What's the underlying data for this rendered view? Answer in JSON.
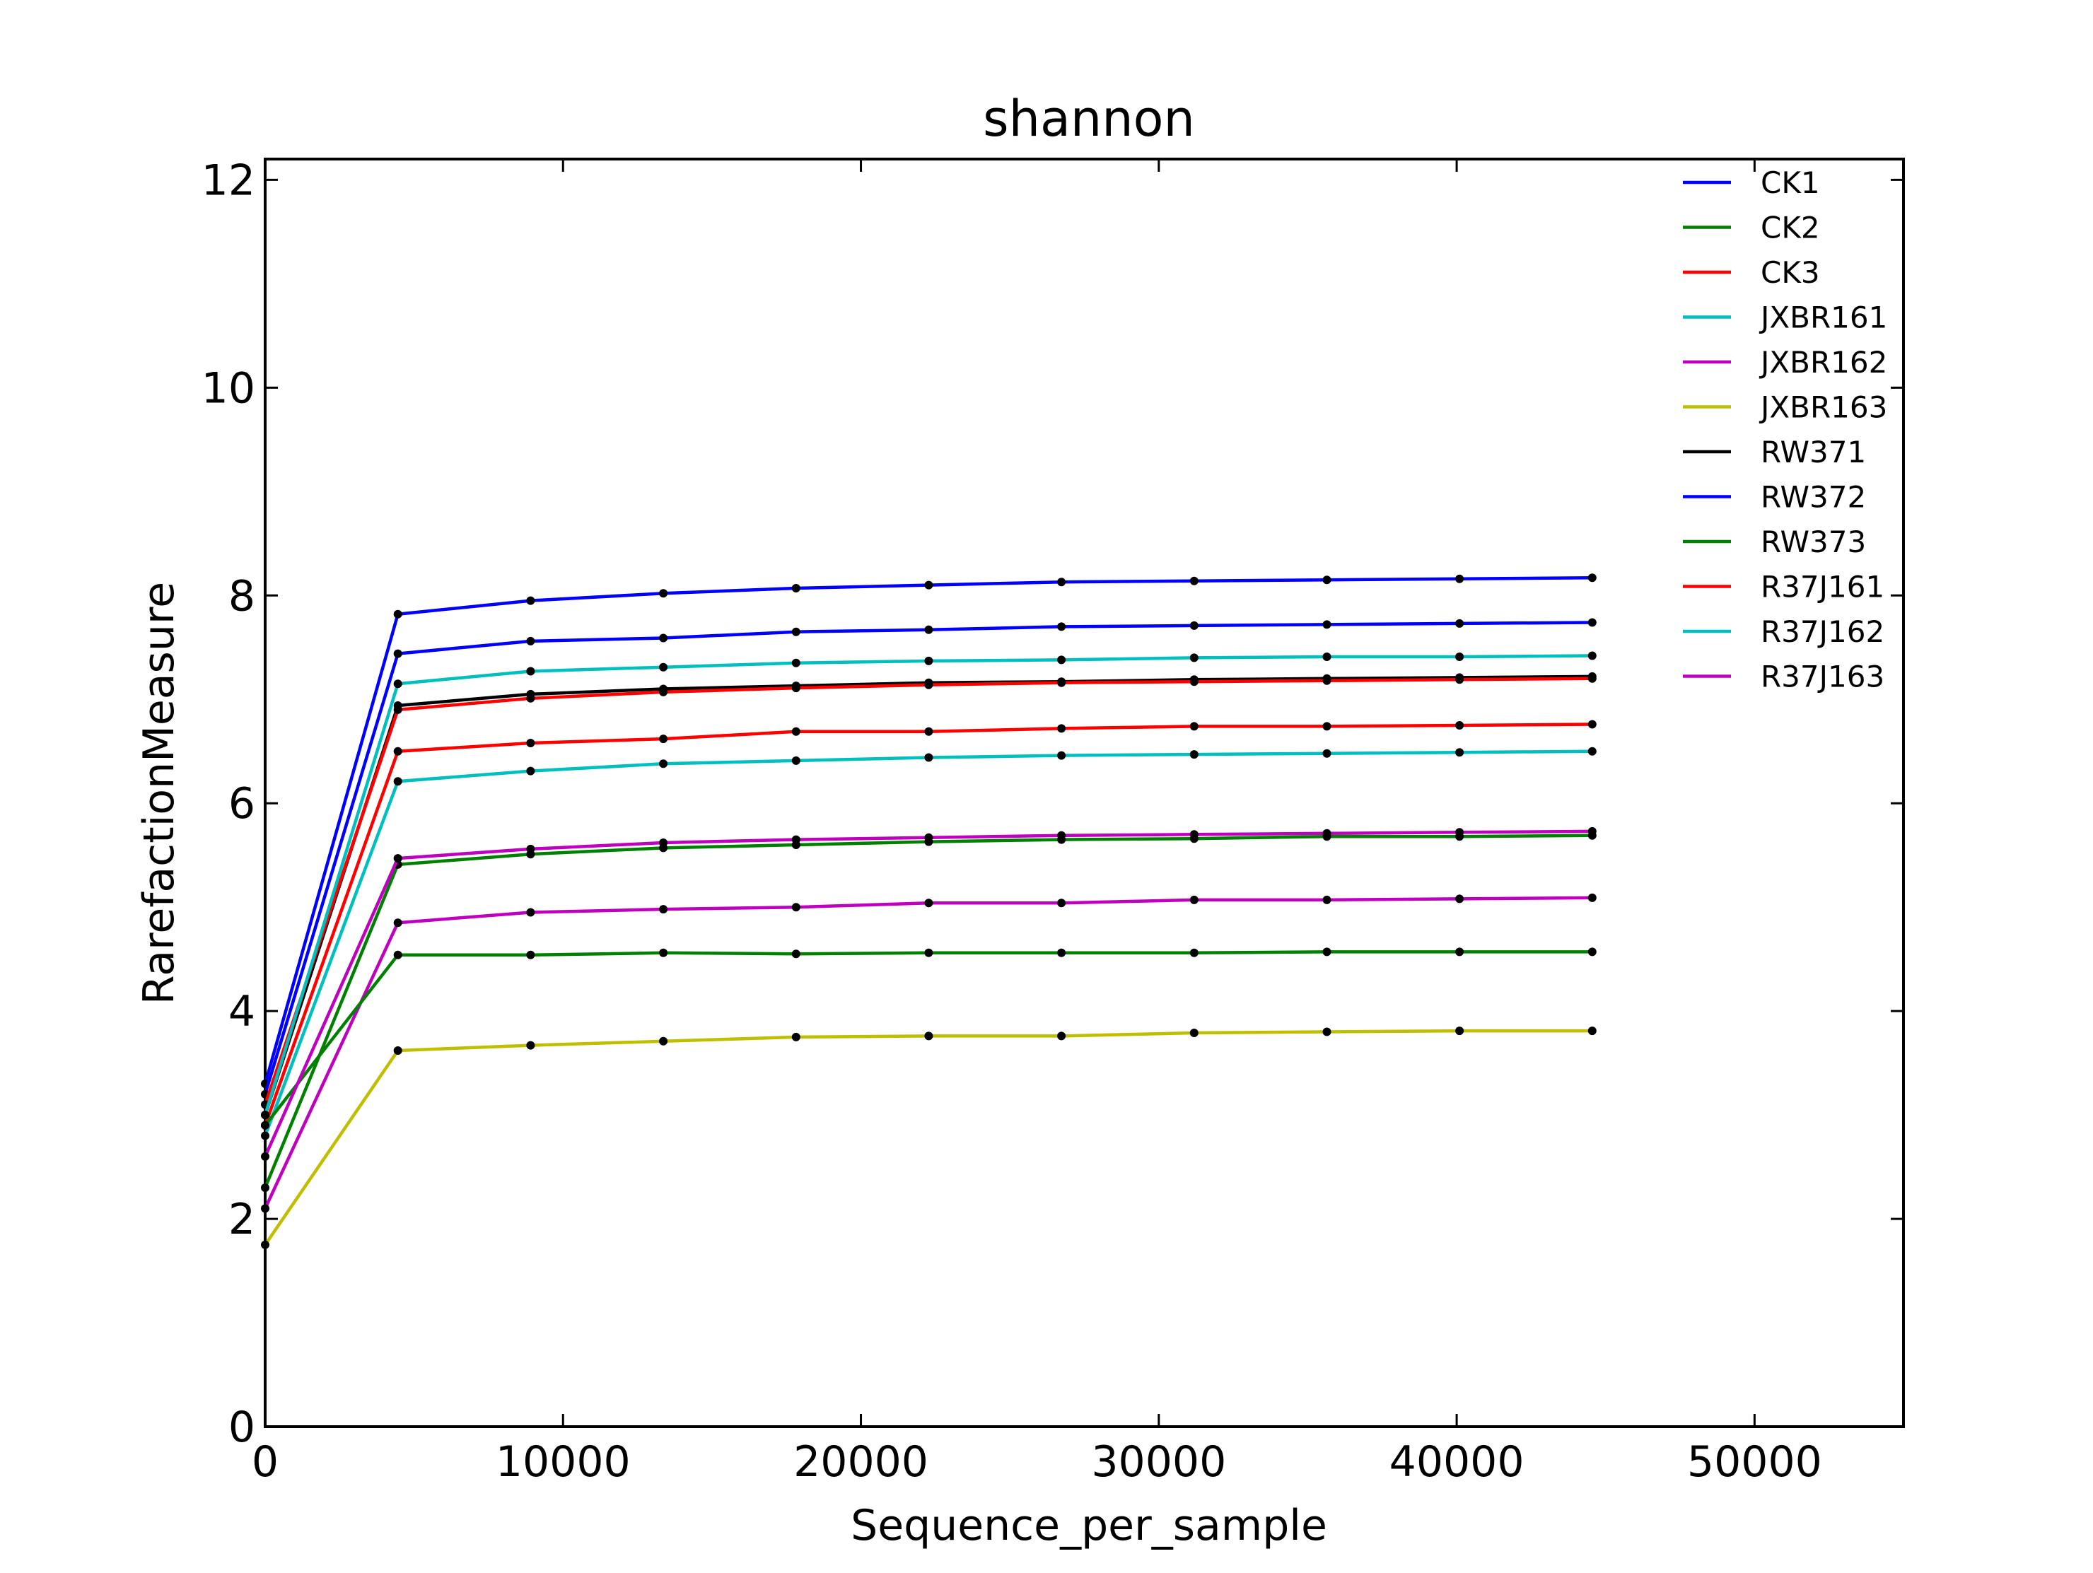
{
  "chart_data": {
    "type": "line",
    "title": "shannon",
    "xlabel": "Sequence_per_sample",
    "ylabel": "RarefactionMeasure",
    "xlim": [
      0,
      55000
    ],
    "ylim": [
      0,
      12.2
    ],
    "xticks": [
      0,
      10000,
      20000,
      30000,
      40000,
      50000
    ],
    "xtick_labels": [
      "0",
      "10000",
      "20000",
      "30000",
      "40000",
      "50000"
    ],
    "yticks": [
      0,
      2,
      4,
      6,
      8,
      10,
      12
    ],
    "ytick_labels": [
      "0",
      "2",
      "4",
      "6",
      "8",
      "10",
      "12"
    ],
    "grid": false,
    "legend": "top-right",
    "markers": true,
    "x": [
      1,
      4456,
      8911,
      13366,
      17821,
      22276,
      26731,
      31186,
      35641,
      40096,
      44551
    ],
    "series": [
      {
        "name": "CK1",
        "color": "#0000ff",
        "values": [
          3.3,
          7.82,
          7.95,
          8.02,
          8.07,
          8.1,
          8.13,
          8.14,
          8.15,
          8.16,
          8.17
        ]
      },
      {
        "name": "CK2",
        "color": "#008000",
        "values": [
          2.3,
          5.41,
          5.51,
          5.57,
          5.6,
          5.63,
          5.65,
          5.66,
          5.68,
          5.68,
          5.69
        ]
      },
      {
        "name": "CK3",
        "color": "#ff0000",
        "values": [
          2.9,
          6.5,
          6.58,
          6.62,
          6.69,
          6.69,
          6.72,
          6.74,
          6.74,
          6.75,
          6.76
        ]
      },
      {
        "name": "JXBR161",
        "color": "#00bfbf",
        "values": [
          2.8,
          6.21,
          6.31,
          6.38,
          6.41,
          6.44,
          6.46,
          6.47,
          6.48,
          6.49,
          6.5
        ]
      },
      {
        "name": "JXBR162",
        "color": "#bf00bf",
        "values": [
          2.1,
          4.85,
          4.95,
          4.98,
          5.0,
          5.04,
          5.04,
          5.07,
          5.07,
          5.08,
          5.09
        ]
      },
      {
        "name": "JXBR163",
        "color": "#bfbf00",
        "values": [
          1.75,
          3.62,
          3.67,
          3.71,
          3.75,
          3.76,
          3.76,
          3.79,
          3.8,
          3.81,
          3.81
        ]
      },
      {
        "name": "RW371",
        "color": "#000000",
        "values": [
          3.0,
          6.94,
          7.05,
          7.1,
          7.13,
          7.16,
          7.17,
          7.19,
          7.2,
          7.21,
          7.22
        ]
      },
      {
        "name": "RW372",
        "color": "#0000ff",
        "values": [
          3.2,
          7.44,
          7.56,
          7.59,
          7.65,
          7.67,
          7.7,
          7.71,
          7.72,
          7.73,
          7.74
        ]
      },
      {
        "name": "RW373",
        "color": "#008000",
        "values": [
          2.9,
          4.54,
          4.54,
          4.56,
          4.55,
          4.56,
          4.56,
          4.56,
          4.57,
          4.57,
          4.57
        ]
      },
      {
        "name": "R37J161",
        "color": "#ff0000",
        "values": [
          3.1,
          6.9,
          7.01,
          7.07,
          7.11,
          7.14,
          7.16,
          7.17,
          7.18,
          7.19,
          7.2
        ]
      },
      {
        "name": "R37J162",
        "color": "#00bfbf",
        "values": [
          3.0,
          7.15,
          7.27,
          7.31,
          7.35,
          7.37,
          7.38,
          7.4,
          7.41,
          7.41,
          7.42
        ]
      },
      {
        "name": "R37J163",
        "color": "#bf00bf",
        "values": [
          2.6,
          5.47,
          5.56,
          5.62,
          5.65,
          5.67,
          5.69,
          5.7,
          5.71,
          5.72,
          5.73
        ]
      }
    ]
  }
}
